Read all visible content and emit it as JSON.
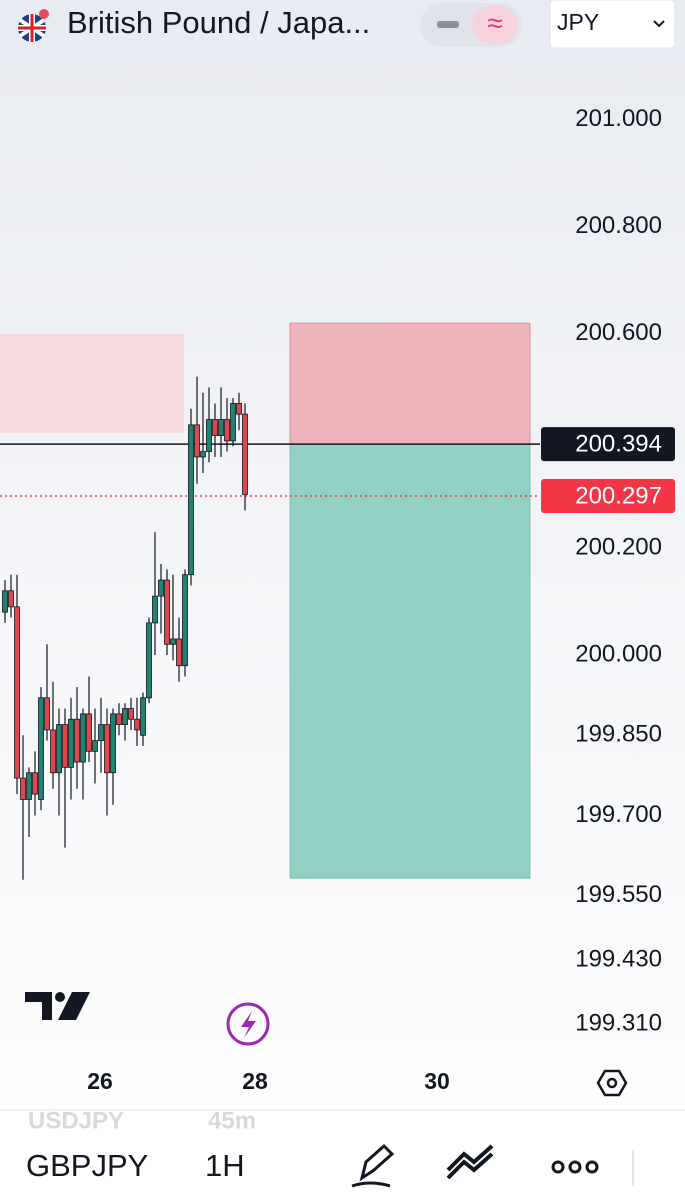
{
  "header": {
    "title": "British Pound / Japa...",
    "currency": "JPY"
  },
  "chart_data": {
    "type": "candlestick",
    "open": [
      200.08,
      200.12,
      200.09,
      199.77,
      199.73,
      199.78,
      199.73,
      199.92,
      199.86,
      199.78,
      199.87,
      199.79,
      199.88,
      199.8,
      199.89,
      199.82,
      199.84,
      199.87,
      199.78,
      199.89,
      199.87,
      199.9,
      199.88,
      199.85,
      199.92,
      200.06,
      200.11,
      200.14,
      200.02,
      200.03,
      199.98,
      200.15,
      200.43,
      200.37,
      200.38,
      200.44,
      200.41,
      200.44,
      200.4,
      200.47,
      200.45
    ],
    "high": [
      200.14,
      200.15,
      200.15,
      199.85,
      199.79,
      199.82,
      199.94,
      200.02,
      199.95,
      199.9,
      199.9,
      199.92,
      199.94,
      199.9,
      199.96,
      199.9,
      199.92,
      199.9,
      199.9,
      199.91,
      199.91,
      199.92,
      199.92,
      199.93,
      200.07,
      200.23,
      200.17,
      200.16,
      200.15,
      200.07,
      200.16,
      200.46,
      200.52,
      200.49,
      200.5,
      200.47,
      200.5,
      200.48,
      200.48,
      200.49,
      200.47
    ],
    "low": [
      200.06,
      200.07,
      199.74,
      199.58,
      199.66,
      199.7,
      199.71,
      199.84,
      199.75,
      199.7,
      199.64,
      199.73,
      199.75,
      199.73,
      199.8,
      199.76,
      199.78,
      199.7,
      199.72,
      199.85,
      199.84,
      199.86,
      199.83,
      199.83,
      199.91,
      200.0,
      200.04,
      200.0,
      199.99,
      199.95,
      199.96,
      200.13,
      200.32,
      200.34,
      200.36,
      200.37,
      200.37,
      200.38,
      200.39,
      200.42,
      200.27
    ],
    "close": [
      200.12,
      200.09,
      199.77,
      199.73,
      199.78,
      199.74,
      199.92,
      199.86,
      199.78,
      199.87,
      199.79,
      199.88,
      199.8,
      199.89,
      199.82,
      199.84,
      199.87,
      199.78,
      199.89,
      199.87,
      199.9,
      199.88,
      199.86,
      199.92,
      200.06,
      200.11,
      200.14,
      200.02,
      200.03,
      199.98,
      200.15,
      200.43,
      200.37,
      200.38,
      200.44,
      200.41,
      200.44,
      200.4,
      200.47,
      200.45,
      200.3
    ],
    "up_color": "#26806f",
    "down_color": "#e0474c",
    "ylim": [
      199.262,
      201.121
    ],
    "yticks": [
      {
        "value": 201,
        "label": "201.000"
      },
      {
        "value": 200.8,
        "label": "200.800"
      },
      {
        "value": 200.6,
        "label": "200.600"
      },
      {
        "value": 200.2,
        "label": "200.200"
      },
      {
        "value": 200,
        "label": "200.000"
      },
      {
        "value": 199.85,
        "label": "199.850"
      },
      {
        "value": 199.7,
        "label": "199.700"
      },
      {
        "value": 199.55,
        "label": "199.550"
      },
      {
        "value": 199.43,
        "label": "199.430"
      },
      {
        "value": 199.31,
        "label": "199.310"
      }
    ],
    "last_price": 200.394,
    "bid_price": 200.297,
    "zone": [
      200.415,
      200.6
    ],
    "position": {
      "stop": 200.62,
      "entry": 200.394,
      "target": 199.583
    },
    "xlabels": [
      "26",
      "28",
      "30"
    ]
  },
  "footer": {
    "faded_symbol": "USDJPY",
    "faded_interval": "45m",
    "symbol": "GBPJPY",
    "interval": "1H"
  }
}
